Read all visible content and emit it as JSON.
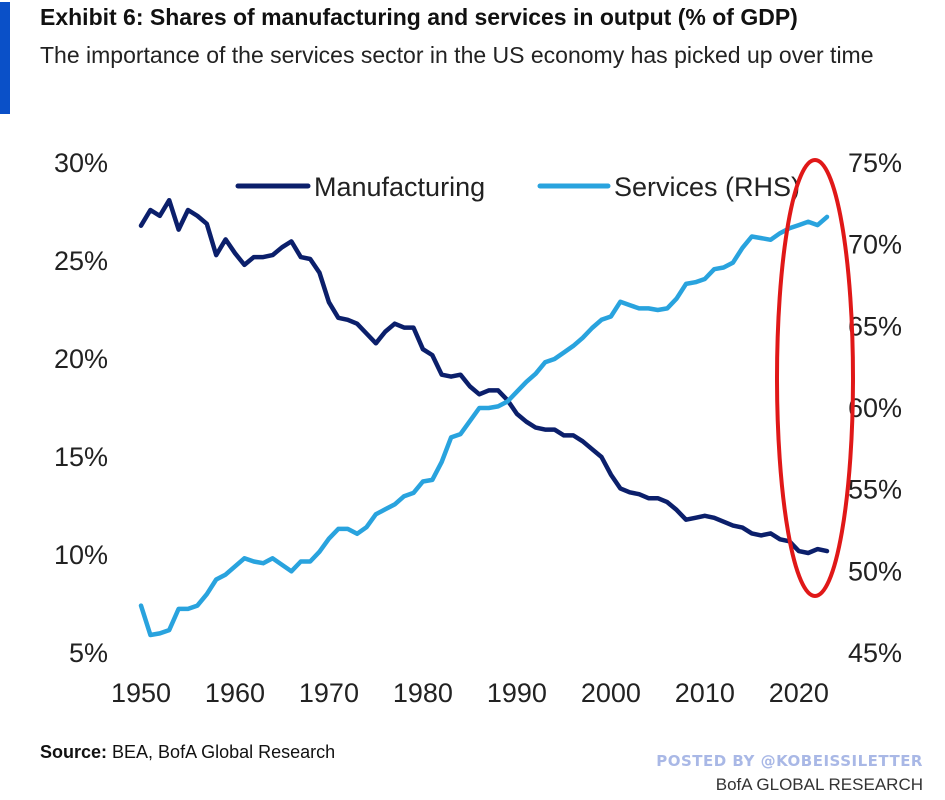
{
  "title": "Exhibit 6: Shares of manufacturing and services in output (% of GDP)",
  "subtitle": "The importance of the services sector in the US economy has picked up over time",
  "source_label": "Source:",
  "source_text": " BEA, BofA Global Research",
  "watermark": "POSTED BY @KOBEISSILETTER",
  "publisher": "BofA GLOBAL RESEARCH",
  "colors": {
    "accent": "#0a50c8",
    "manufacturing": "#0b1f6b",
    "services": "#29a3de",
    "highlight": "#e01818",
    "watermark": "#a9b8e6"
  },
  "chart_data": {
    "type": "line",
    "x_ticks": [
      1950,
      1960,
      1970,
      1980,
      1990,
      2000,
      2010,
      2020
    ],
    "xlim": [
      1950,
      2023
    ],
    "left_axis": {
      "ylim": [
        5,
        30
      ],
      "ticks": [
        "5%",
        "10%",
        "15%",
        "20%",
        "25%",
        "30%"
      ],
      "tick_values": [
        5,
        10,
        15,
        20,
        25,
        30
      ]
    },
    "right_axis": {
      "ylim": [
        45,
        75
      ],
      "ticks": [
        "45%",
        "50%",
        "55%",
        "60%",
        "65%",
        "70%",
        "75%"
      ],
      "tick_values": [
        45,
        50,
        55,
        60,
        65,
        70,
        75
      ]
    },
    "legend_position": "top",
    "grid": false,
    "annotation": "red ellipse highlighting 2019-2023",
    "series": [
      {
        "name": "Manufacturing",
        "axis": "left",
        "x": [
          1950,
          1951,
          1952,
          1953,
          1954,
          1955,
          1956,
          1957,
          1958,
          1959,
          1960,
          1961,
          1962,
          1963,
          1964,
          1965,
          1966,
          1967,
          1968,
          1969,
          1970,
          1971,
          1972,
          1973,
          1974,
          1975,
          1976,
          1977,
          1978,
          1979,
          1980,
          1981,
          1982,
          1983,
          1984,
          1985,
          1986,
          1987,
          1988,
          1989,
          1990,
          1991,
          1992,
          1993,
          1994,
          1995,
          1996,
          1997,
          1998,
          1999,
          2000,
          2001,
          2002,
          2003,
          2004,
          2005,
          2006,
          2007,
          2008,
          2009,
          2010,
          2011,
          2012,
          2013,
          2014,
          2015,
          2016,
          2017,
          2018,
          2019,
          2020,
          2021,
          2022,
          2023
        ],
        "values": [
          26.8,
          27.6,
          27.3,
          28.1,
          26.6,
          27.6,
          27.3,
          26.9,
          25.3,
          26.1,
          25.4,
          24.8,
          25.2,
          25.2,
          25.3,
          25.7,
          26.0,
          25.2,
          25.1,
          24.4,
          22.9,
          22.1,
          22.0,
          21.8,
          21.3,
          20.8,
          21.4,
          21.8,
          21.6,
          21.6,
          20.5,
          20.2,
          19.2,
          19.1,
          19.2,
          18.6,
          18.2,
          18.4,
          18.4,
          17.9,
          17.2,
          16.8,
          16.5,
          16.4,
          16.4,
          16.1,
          16.1,
          15.8,
          15.4,
          15.0,
          14.1,
          13.4,
          13.2,
          13.1,
          12.9,
          12.9,
          12.7,
          12.3,
          11.8,
          11.9,
          12.0,
          11.9,
          11.7,
          11.5,
          11.4,
          11.1,
          11.0,
          11.1,
          10.8,
          10.7,
          10.2,
          10.1,
          10.3,
          10.2
        ]
      },
      {
        "name": "Services (RHS)",
        "axis": "right",
        "x": [
          1950,
          1951,
          1952,
          1953,
          1954,
          1955,
          1956,
          1957,
          1958,
          1959,
          1960,
          1961,
          1962,
          1963,
          1964,
          1965,
          1966,
          1967,
          1968,
          1969,
          1970,
          1971,
          1972,
          1973,
          1974,
          1975,
          1976,
          1977,
          1978,
          1979,
          1980,
          1981,
          1982,
          1983,
          1984,
          1985,
          1986,
          1987,
          1988,
          1989,
          1990,
          1991,
          1992,
          1993,
          1994,
          1995,
          1996,
          1997,
          1998,
          1999,
          2000,
          2001,
          2002,
          2003,
          2004,
          2005,
          2006,
          2007,
          2008,
          2009,
          2010,
          2011,
          2012,
          2013,
          2014,
          2015,
          2016,
          2017,
          2018,
          2019,
          2020,
          2021,
          2022,
          2023
        ],
        "values": [
          47.9,
          46.1,
          46.2,
          46.4,
          47.7,
          47.7,
          47.9,
          48.6,
          49.5,
          49.8,
          50.3,
          50.8,
          50.6,
          50.5,
          50.8,
          50.4,
          50.0,
          50.6,
          50.6,
          51.2,
          52.0,
          52.6,
          52.6,
          52.3,
          52.7,
          53.5,
          53.8,
          54.1,
          54.6,
          54.8,
          55.5,
          55.6,
          56.7,
          58.2,
          58.4,
          59.2,
          60.0,
          60.0,
          60.1,
          60.4,
          61.0,
          61.6,
          62.1,
          62.8,
          63.0,
          63.4,
          63.8,
          64.3,
          64.9,
          65.4,
          65.6,
          66.5,
          66.3,
          66.1,
          66.1,
          66.0,
          66.1,
          66.7,
          67.6,
          67.7,
          67.9,
          68.5,
          68.6,
          68.9,
          69.8,
          70.5,
          70.4,
          70.3,
          70.7,
          71.0,
          71.2,
          71.4,
          71.2,
          71.7
        ]
      }
    ]
  }
}
